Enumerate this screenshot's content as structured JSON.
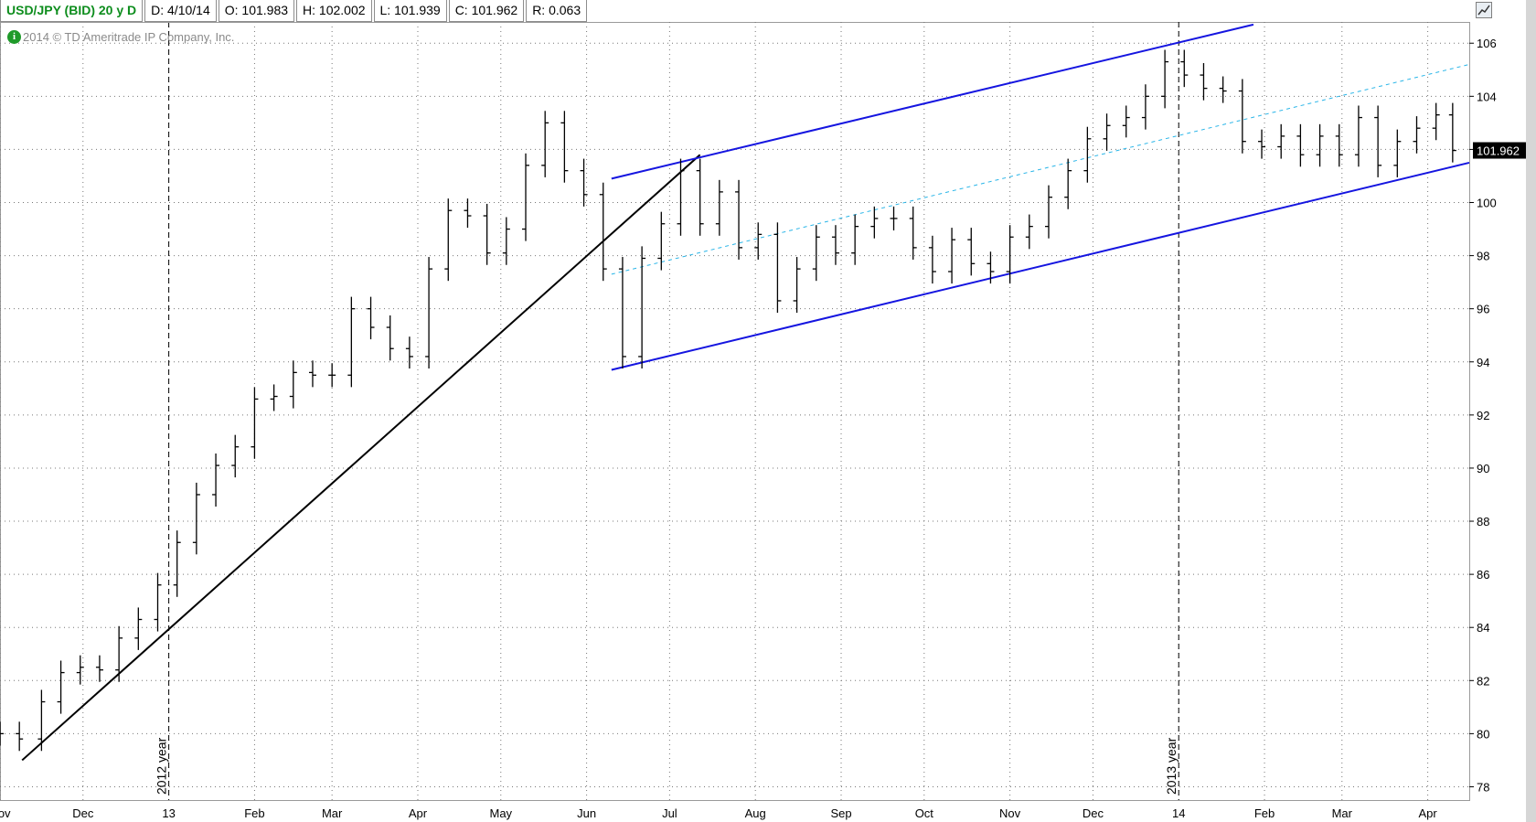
{
  "header": {
    "symbol": "USD/JPY (BID) 20 y D",
    "date": "D: 4/10/14",
    "open": "O: 101.983",
    "high": "H: 102.002",
    "low": "L: 101.939",
    "close": "C: 101.962",
    "range": "R: 0.063"
  },
  "copyright": "2014 © TD Ameritrade IP Company, Inc.",
  "info_icon": "info-icon",
  "corner_button_icon": "chart-settings-icon",
  "last_price": "101.962",
  "colors": {
    "bars": "#000000",
    "channel": "#1515e0",
    "midline": "#29b5e8",
    "trendline": "#000000",
    "grid": "#777777",
    "header_symbol": "#0d8d1d"
  },
  "chart_data": {
    "type": "ohlc",
    "title": "USD/JPY (BID) 20 y D",
    "y_ticks": [
      78,
      80,
      82,
      84,
      86,
      88,
      90,
      92,
      94,
      96,
      98,
      100,
      102,
      104,
      106
    ],
    "ylim": [
      77.5,
      106.8
    ],
    "x_range": [
      "2012-11-01",
      "2014-04-16"
    ],
    "x_ticks": [
      {
        "label": "Nov",
        "date": "2012-11-01"
      },
      {
        "label": "Dec",
        "date": "2012-12-01"
      },
      {
        "label": "13",
        "date": "2013-01-01"
      },
      {
        "label": "Feb",
        "date": "2013-02-01"
      },
      {
        "label": "Mar",
        "date": "2013-03-01"
      },
      {
        "label": "Apr",
        "date": "2013-04-01"
      },
      {
        "label": "May",
        "date": "2013-05-01"
      },
      {
        "label": "Jun",
        "date": "2013-06-01"
      },
      {
        "label": "Jul",
        "date": "2013-07-01"
      },
      {
        "label": "Aug",
        "date": "2013-08-01"
      },
      {
        "label": "Sep",
        "date": "2013-09-01"
      },
      {
        "label": "Oct",
        "date": "2013-10-01"
      },
      {
        "label": "Nov",
        "date": "2013-11-01"
      },
      {
        "label": "Dec",
        "date": "2013-12-01"
      },
      {
        "label": "14",
        "date": "2014-01-01"
      },
      {
        "label": "Feb",
        "date": "2014-02-01"
      },
      {
        "label": "Mar",
        "date": "2014-03-01"
      },
      {
        "label": "Apr",
        "date": "2014-04-01"
      }
    ],
    "year_markers": [
      {
        "label": "2012 year",
        "date": "2013-01-01"
      },
      {
        "label": "2013 year",
        "date": "2014-01-01"
      }
    ],
    "series": [
      {
        "name": "USD/JPY",
        "points": [
          [
            "2012-11-01",
            80.0
          ],
          [
            "2012-11-08",
            79.8
          ],
          [
            "2012-11-16",
            81.2
          ],
          [
            "2012-11-23",
            82.3
          ],
          [
            "2012-11-30",
            82.5
          ],
          [
            "2012-12-07",
            82.4
          ],
          [
            "2012-12-14",
            83.6
          ],
          [
            "2012-12-21",
            84.3
          ],
          [
            "2012-12-28",
            85.6
          ],
          [
            "2013-01-04",
            87.2
          ],
          [
            "2013-01-11",
            89.0
          ],
          [
            "2013-01-18",
            90.1
          ],
          [
            "2013-01-25",
            90.8
          ],
          [
            "2013-02-01",
            92.6
          ],
          [
            "2013-02-08",
            92.7
          ],
          [
            "2013-02-15",
            93.6
          ],
          [
            "2013-02-22",
            93.5
          ],
          [
            "2013-03-01",
            93.5
          ],
          [
            "2013-03-08",
            96.0
          ],
          [
            "2013-03-15",
            95.3
          ],
          [
            "2013-03-22",
            94.5
          ],
          [
            "2013-03-29",
            94.2
          ],
          [
            "2013-04-05",
            97.5
          ],
          [
            "2013-04-12",
            99.7
          ],
          [
            "2013-04-19",
            99.5
          ],
          [
            "2013-04-26",
            98.1
          ],
          [
            "2013-05-03",
            99.0
          ],
          [
            "2013-05-10",
            101.4
          ],
          [
            "2013-05-17",
            103.0
          ],
          [
            "2013-05-24",
            101.2
          ],
          [
            "2013-05-31",
            100.3
          ],
          [
            "2013-06-07",
            97.5
          ],
          [
            "2013-06-14",
            94.2
          ],
          [
            "2013-06-21",
            97.9
          ],
          [
            "2013-06-28",
            99.2
          ],
          [
            "2013-07-05",
            101.2
          ],
          [
            "2013-07-12",
            99.2
          ],
          [
            "2013-07-19",
            100.4
          ],
          [
            "2013-07-26",
            98.3
          ],
          [
            "2013-08-02",
            98.8
          ],
          [
            "2013-08-09",
            96.3
          ],
          [
            "2013-08-16",
            97.5
          ],
          [
            "2013-08-23",
            98.7
          ],
          [
            "2013-08-30",
            98.1
          ],
          [
            "2013-09-06",
            99.1
          ],
          [
            "2013-09-13",
            99.4
          ],
          [
            "2013-09-20",
            99.4
          ],
          [
            "2013-09-27",
            98.3
          ],
          [
            "2013-10-04",
            97.4
          ],
          [
            "2013-10-11",
            98.6
          ],
          [
            "2013-10-18",
            97.7
          ],
          [
            "2013-10-25",
            97.4
          ],
          [
            "2013-11-01",
            98.7
          ],
          [
            "2013-11-08",
            99.1
          ],
          [
            "2013-11-15",
            100.2
          ],
          [
            "2013-11-22",
            101.2
          ],
          [
            "2013-11-29",
            102.4
          ],
          [
            "2013-12-06",
            102.9
          ],
          [
            "2013-12-13",
            103.2
          ],
          [
            "2013-12-20",
            104.0
          ],
          [
            "2013-12-27",
            105.3
          ],
          [
            "2014-01-03",
            104.8
          ],
          [
            "2014-01-10",
            104.3
          ],
          [
            "2014-01-17",
            104.2
          ],
          [
            "2014-01-24",
            102.3
          ],
          [
            "2014-01-31",
            102.1
          ],
          [
            "2014-02-07",
            102.5
          ],
          [
            "2014-02-14",
            101.8
          ],
          [
            "2014-02-21",
            102.5
          ],
          [
            "2014-02-28",
            101.8
          ],
          [
            "2014-03-07",
            103.2
          ],
          [
            "2014-03-14",
            101.4
          ],
          [
            "2014-03-21",
            102.3
          ],
          [
            "2014-03-28",
            102.8
          ],
          [
            "2014-04-04",
            103.3
          ],
          [
            "2014-04-10",
            101.96
          ]
        ]
      }
    ],
    "lines": [
      {
        "name": "trendline",
        "from": [
          "2012-11-09",
          79.0
        ],
        "to": [
          "2013-07-12",
          101.8
        ]
      },
      {
        "name": "channel-upper",
        "from": [
          "2013-06-10",
          100.9
        ],
        "to": [
          "2014-01-28",
          106.7
        ]
      },
      {
        "name": "channel-lower",
        "from": [
          "2013-06-10",
          93.7
        ],
        "to": [
          "2014-04-16",
          101.5
        ]
      },
      {
        "name": "channel-midline",
        "from": [
          "2013-06-10",
          97.3
        ],
        "to": [
          "2014-04-16",
          105.2
        ]
      }
    ]
  }
}
